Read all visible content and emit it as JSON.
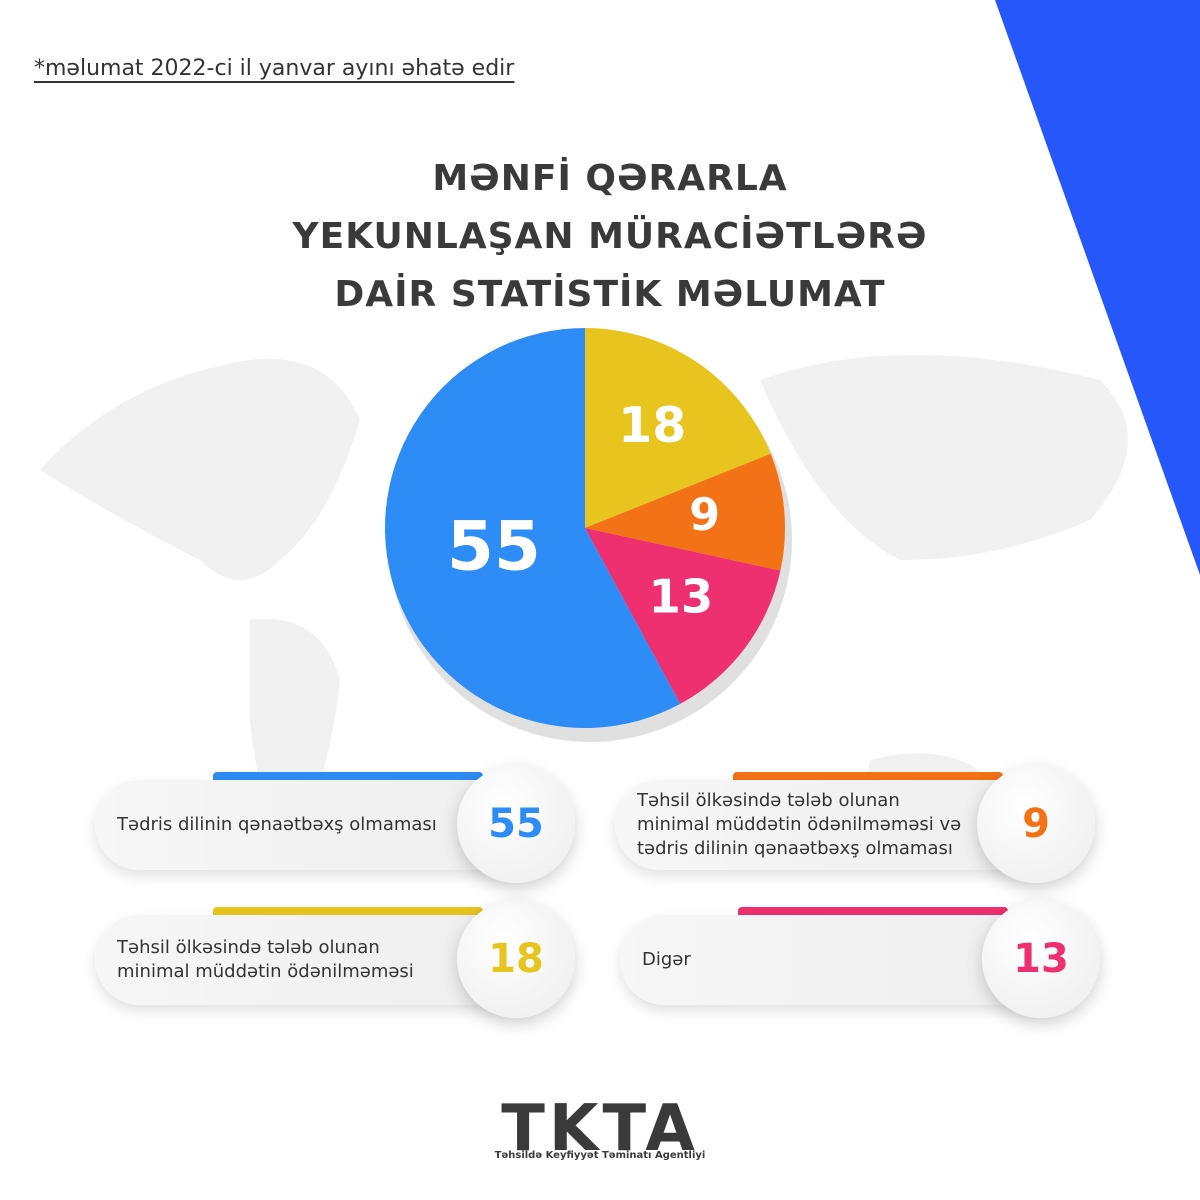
{
  "note": "*məlumat 2022-ci il yanvar ayını əhatə edir",
  "chart_data": {
    "type": "pie",
    "title": "MƏNFİ QƏRARLA YEKUNLAŞAN MÜRACİƏTLƏRƏ DAİR STATİSTİK MƏLUMAT",
    "categories": [
      "Təhsil ölkəsində tələb olunan minimal müddətin ödənilməməsi",
      "Təhsil ölkəsində tələb olunan minimal müddətin ödənilməməsi və tədris dilinin qənaətbəxş olmaması",
      "Digər",
      "Tədris dilinin qənaətbəxş olmaması"
    ],
    "values": [
      18,
      9,
      13,
      55
    ],
    "colors": [
      "#e8c41e",
      "#f47216",
      "#ee3070",
      "#2d8cf5"
    ]
  },
  "logo": {
    "name": "TKTA",
    "subtitle": "Təhsildə Keyfiyyət Təminatı Agentliyi"
  }
}
